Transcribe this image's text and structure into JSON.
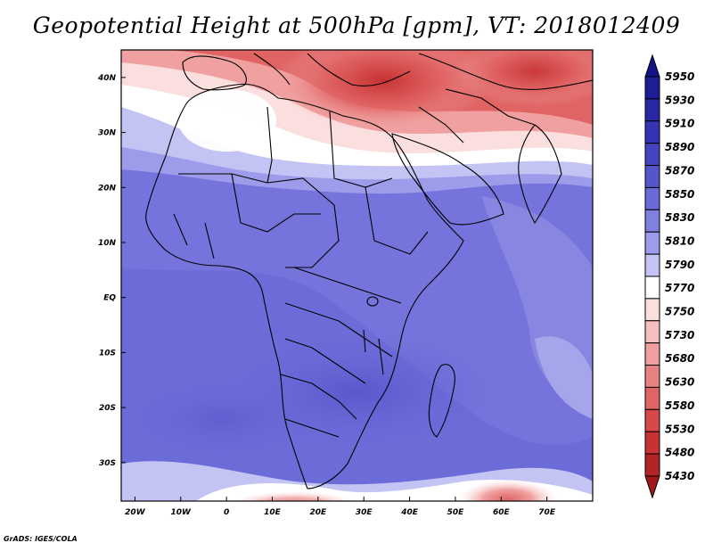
{
  "title": "Geopotential Height at 500hPa [gpm], VT: 2018012409",
  "credit": "GrADS: IGES/COLA",
  "map": {
    "variable": "Geopotential Height",
    "level": "500hPa",
    "units": "gpm",
    "valid_time": "2018012409",
    "lon_range": [
      -23,
      80
    ],
    "lat_range": [
      -37,
      45
    ],
    "x_ticks": [
      {
        "label": "20W",
        "lon": -20
      },
      {
        "label": "10W",
        "lon": -10
      },
      {
        "label": "0",
        "lon": 0
      },
      {
        "label": "10E",
        "lon": 10
      },
      {
        "label": "20E",
        "lon": 20
      },
      {
        "label": "30E",
        "lon": 30
      },
      {
        "label": "40E",
        "lon": 40
      },
      {
        "label": "50E",
        "lon": 50
      },
      {
        "label": "60E",
        "lon": 60
      },
      {
        "label": "70E",
        "lon": 70
      }
    ],
    "y_ticks": [
      {
        "label": "40N",
        "lat": 40
      },
      {
        "label": "30N",
        "lat": 30
      },
      {
        "label": "20N",
        "lat": 20
      },
      {
        "label": "10N",
        "lat": 10
      },
      {
        "label": "EQ",
        "lat": 0
      },
      {
        "label": "10S",
        "lat": -10
      },
      {
        "label": "20S",
        "lat": -20
      },
      {
        "label": "30S",
        "lat": -30
      }
    ]
  },
  "colorbar": {
    "levels": [
      {
        "label": "5950",
        "color": "#1e1e96"
      },
      {
        "label": "5930",
        "color": "#2828a6"
      },
      {
        "label": "5910",
        "color": "#3434b4"
      },
      {
        "label": "5890",
        "color": "#4444c2"
      },
      {
        "label": "5870",
        "color": "#5656cc"
      },
      {
        "label": "5850",
        "color": "#6a6ad8"
      },
      {
        "label": "5830",
        "color": "#8080e0"
      },
      {
        "label": "5810",
        "color": "#9c9cea"
      },
      {
        "label": "5790",
        "color": "#c4c4f4"
      },
      {
        "label": "5770",
        "color": "#ffffff"
      },
      {
        "label": "5750",
        "color": "#fbdede"
      },
      {
        "label": "5730",
        "color": "#f6c0c0"
      },
      {
        "label": "5680",
        "color": "#f0a0a0"
      },
      {
        "label": "5630",
        "color": "#e88282"
      },
      {
        "label": "5580",
        "color": "#e06464"
      },
      {
        "label": "5530",
        "color": "#d84848"
      },
      {
        "label": "5480",
        "color": "#c83232"
      },
      {
        "label": "5430",
        "color": "#b42424"
      }
    ],
    "top_arrow_color": "#141488",
    "bottom_arrow_color": "#a01818"
  }
}
